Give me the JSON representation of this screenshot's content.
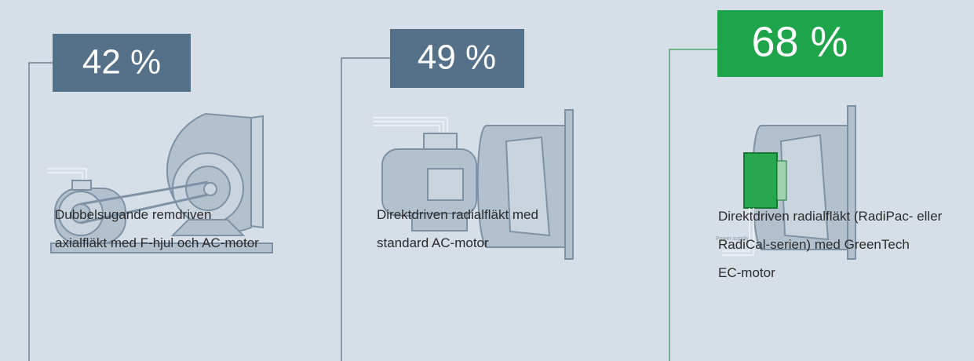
{
  "panels": [
    {
      "value_label": "42 %",
      "description": [
        "Dubbelsugande remdriven",
        "axialfläkt med F-hjul och AC-motor"
      ]
    },
    {
      "value_label": "49 %",
      "description": [
        "Direktdriven radialfläkt med",
        "standard AC-motor"
      ]
    },
    {
      "value_label": "68 %",
      "illustration_label": "Power supply",
      "description": [
        "Direktdriven radialfläkt (RadiPac- eller",
        "RadiCal-serien) med GreenTech",
        "EC-motor"
      ]
    }
  ]
}
